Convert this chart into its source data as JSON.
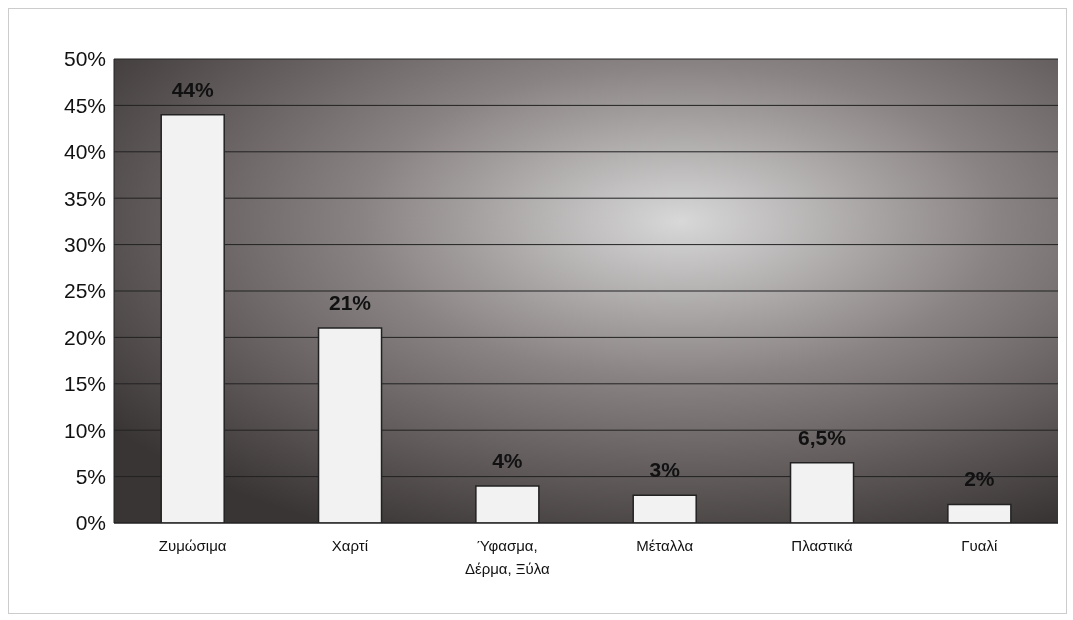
{
  "chart_data": {
    "type": "bar",
    "categories": [
      "Ζυμώσιμα",
      "Χαρτί",
      "Ύφασμα, Δέρμα, Ξύλα",
      "Μέταλλα",
      "Πλαστικά",
      "Γυαλί"
    ],
    "values": [
      44,
      21,
      4,
      3,
      6.5,
      2
    ],
    "value_labels": [
      "44%",
      "21%",
      "4%",
      "3%",
      "6,5%",
      "2%"
    ],
    "color": "#f2f2f2",
    "ylim": [
      0,
      50
    ],
    "yticks": [
      {
        "value": 0,
        "label": "0%"
      },
      {
        "value": 5,
        "label": "5%"
      },
      {
        "value": 10,
        "label": "10%"
      },
      {
        "value": 15,
        "label": "15%"
      },
      {
        "value": 20,
        "label": "20%"
      },
      {
        "value": 25,
        "label": "25%"
      },
      {
        "value": 30,
        "label": "30%"
      },
      {
        "value": 35,
        "label": "35%"
      },
      {
        "value": 40,
        "label": "40%"
      },
      {
        "value": 45,
        "label": "45%"
      },
      {
        "value": 50,
        "label": "50%"
      }
    ],
    "grid": "y",
    "legend": false
  }
}
